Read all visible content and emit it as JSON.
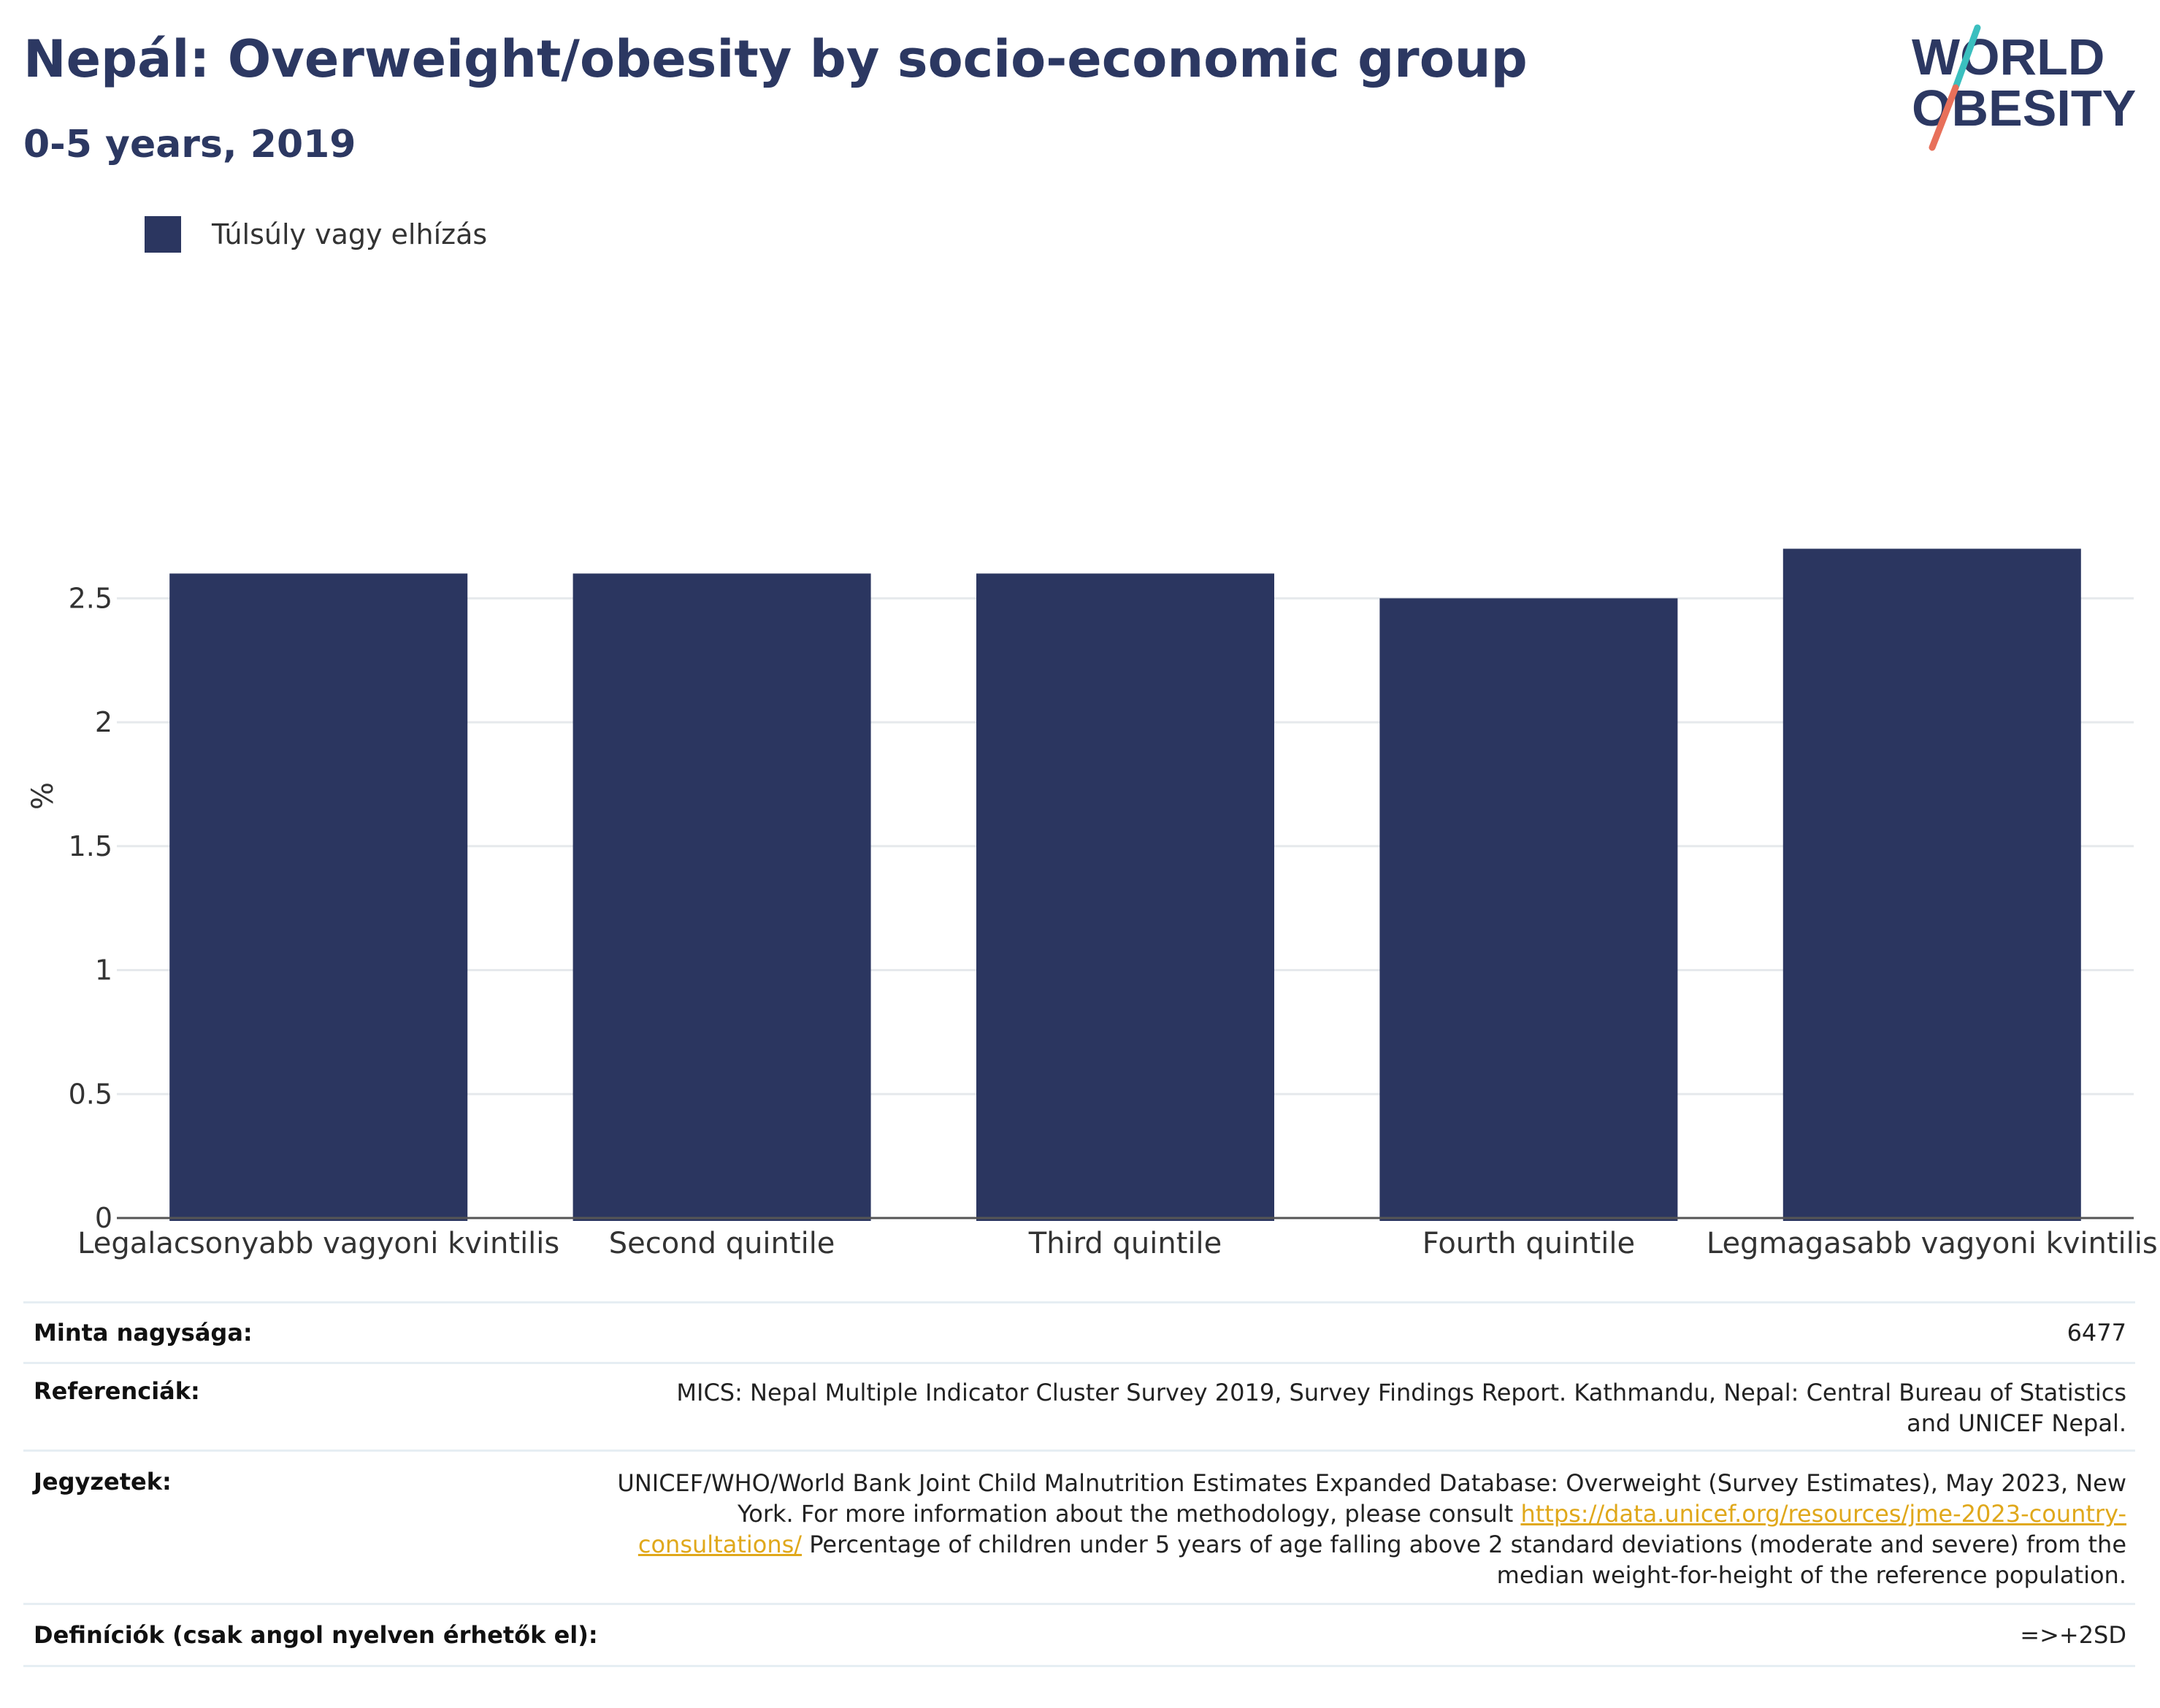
{
  "header": {
    "title": "Nepál: Overweight/obesity by socio-economic group",
    "subtitle": "0-5 years, 2019"
  },
  "logo": {
    "line1": "WORLD",
    "line2": "OBESITY",
    "color_text": "#2c3862",
    "color_slash_top": "#3bbfbf",
    "color_slash_bottom": "#e8705a"
  },
  "legend": {
    "label": "Túlsúly vagy elhízás",
    "color": "#2b3660"
  },
  "chart_data": {
    "type": "bar",
    "categories": [
      "Legalacsonyabb vagyoni kvintilis",
      "Second quintile",
      "Third quintile",
      "Fourth quintile",
      "Legmagasabb vagyoni kvintilis"
    ],
    "series": [
      {
        "name": "Túlsúly vagy elhízás",
        "values": [
          2.6,
          2.6,
          2.6,
          2.5,
          2.7
        ],
        "color": "#2b3660"
      }
    ],
    "ylabel": "%",
    "xlabel": "",
    "ylim": [
      0,
      3.7
    ],
    "yticks": [
      0,
      0.5,
      1,
      1.5,
      2,
      2.5
    ],
    "ytick_labels": [
      "0",
      "0.5",
      "1",
      "1.5",
      "2",
      "2.5"
    ],
    "grid": true
  },
  "info": {
    "sample_label": "Minta nagysága:",
    "sample_value": "6477",
    "ref_label": "Referenciák:",
    "ref_value": "MICS: Nepal Multiple Indicator Cluster Survey 2019, Survey Findings Report. Kathmandu, Nepal: Central Bureau of Statistics and UNICEF Nepal.",
    "notes_label": "Jegyzetek:",
    "notes_text_1": "UNICEF/WHO/World Bank Joint Child Malnutrition Estimates Expanded Database: Overweight (Survey Estimates), May 2023, New York. For more information about the methodology, please consult ",
    "notes_link": "https://data.unicef.org/resources/jme-2023-country-consultations/",
    "notes_text_2": " Percentage of children under 5 years of age falling above 2 standard deviations (moderate and severe) from the median weight-for-height of the reference population.",
    "defs_label": "Definíciók (csak angol nyelven érhetők el):",
    "defs_value": "=>+2SD"
  }
}
